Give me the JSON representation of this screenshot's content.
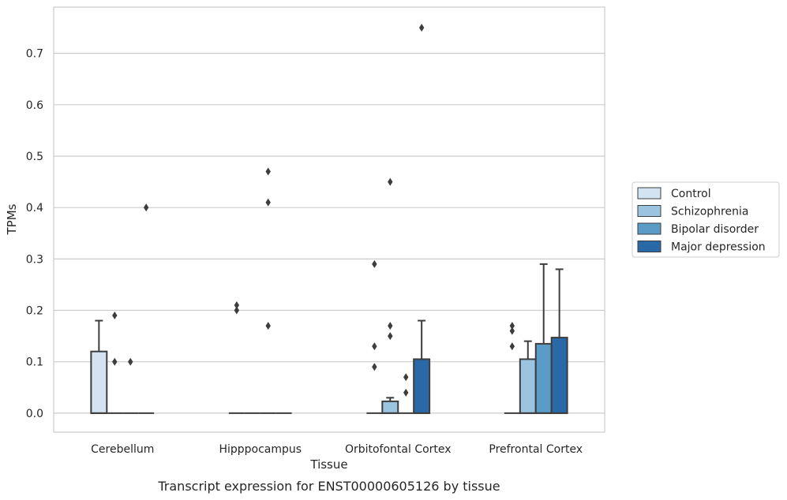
{
  "chart_data": {
    "type": "box",
    "title": "",
    "caption": "Transcript expression for ENST00000605126 by tissue",
    "xlabel": "Tissue",
    "ylabel": "TPMs",
    "ylim": [
      -0.037,
      0.79
    ],
    "yticks": [
      0.0,
      0.1,
      0.2,
      0.3,
      0.4,
      0.5,
      0.6,
      0.7
    ],
    "ytick_labels": [
      "0.0",
      "0.1",
      "0.2",
      "0.3",
      "0.4",
      "0.5",
      "0.6",
      "0.7"
    ],
    "grid": "horizontal",
    "legend_position": "right",
    "categories": [
      "Cerebellum",
      "Hipppocampus",
      "Orbitofontal Cortex",
      "Prefrontal Cortex"
    ],
    "series": [
      {
        "name": "Control",
        "color": "#d4e3f1",
        "boxes": [
          {
            "q1": 0.0,
            "median": 0.0,
            "q3": 0.12,
            "whisker_low": 0.0,
            "whisker_high": 0.18,
            "outliers": []
          },
          {
            "q1": 0.0,
            "median": 0.0,
            "q3": 0.0,
            "whisker_low": 0.0,
            "whisker_high": 0.0,
            "outliers": [
              0.2,
              0.21
            ]
          },
          {
            "q1": 0.0,
            "median": 0.0,
            "q3": 0.0,
            "whisker_low": 0.0,
            "whisker_high": 0.0,
            "outliers": [
              0.09,
              0.13,
              0.29
            ]
          },
          {
            "q1": 0.0,
            "median": 0.0,
            "q3": 0.0,
            "whisker_low": 0.0,
            "whisker_high": 0.0,
            "outliers": [
              0.13,
              0.16,
              0.17
            ]
          }
        ]
      },
      {
        "name": "Schizophrenia",
        "color": "#9ac4df",
        "boxes": [
          {
            "q1": 0.0,
            "median": 0.0,
            "q3": 0.0,
            "whisker_low": 0.0,
            "whisker_high": 0.0,
            "outliers": [
              0.1,
              0.19
            ]
          },
          {
            "q1": 0.0,
            "median": 0.0,
            "q3": 0.0,
            "whisker_low": 0.0,
            "whisker_high": 0.0,
            "outliers": []
          },
          {
            "q1": 0.0,
            "median": 0.0,
            "q3": 0.023,
            "whisker_low": 0.0,
            "whisker_high": 0.03,
            "outliers": [
              0.15,
              0.17,
              0.45
            ]
          },
          {
            "q1": 0.0,
            "median": 0.0,
            "q3": 0.105,
            "whisker_low": 0.0,
            "whisker_high": 0.14,
            "outliers": []
          }
        ]
      },
      {
        "name": "Bipolar disorder",
        "color": "#5b9bc8",
        "boxes": [
          {
            "q1": 0.0,
            "median": 0.0,
            "q3": 0.0,
            "whisker_low": 0.0,
            "whisker_high": 0.0,
            "outliers": [
              0.1
            ]
          },
          {
            "q1": 0.0,
            "median": 0.0,
            "q3": 0.0,
            "whisker_low": 0.0,
            "whisker_high": 0.0,
            "outliers": [
              0.17,
              0.41,
              0.47
            ]
          },
          {
            "q1": 0.0,
            "median": 0.0,
            "q3": 0.0,
            "whisker_low": 0.0,
            "whisker_high": 0.0,
            "outliers": [
              0.04,
              0.07
            ]
          },
          {
            "q1": 0.0,
            "median": 0.0,
            "q3": 0.135,
            "whisker_low": 0.0,
            "whisker_high": 0.29,
            "outliers": []
          }
        ]
      },
      {
        "name": "Major depression",
        "color": "#2a69a8",
        "boxes": [
          {
            "q1": 0.0,
            "median": 0.0,
            "q3": 0.0,
            "whisker_low": 0.0,
            "whisker_high": 0.0,
            "outliers": [
              0.4
            ]
          },
          {
            "q1": 0.0,
            "median": 0.0,
            "q3": 0.0,
            "whisker_low": 0.0,
            "whisker_high": 0.0,
            "outliers": []
          },
          {
            "q1": 0.0,
            "median": 0.0,
            "q3": 0.105,
            "whisker_low": 0.0,
            "whisker_high": 0.18,
            "outliers": [
              0.75
            ]
          },
          {
            "q1": 0.0,
            "median": 0.0,
            "q3": 0.147,
            "whisker_low": 0.0,
            "whisker_high": 0.28,
            "outliers": []
          }
        ]
      }
    ]
  }
}
